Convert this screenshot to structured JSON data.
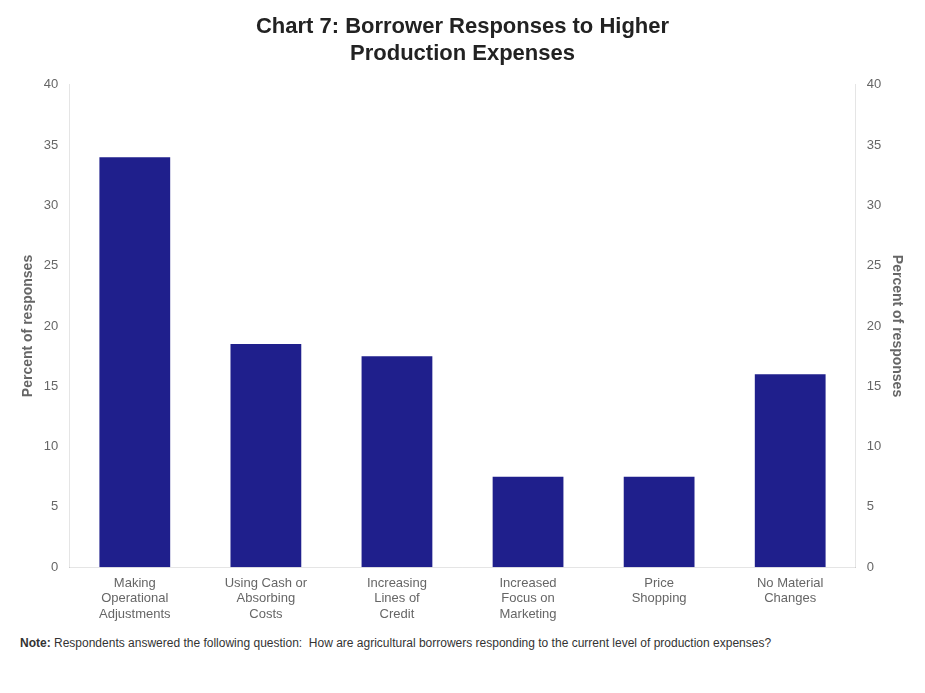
{
  "chart_data": {
    "type": "bar",
    "title": [
      "Chart 7: Borrower Responses to Higher",
      "Production Expenses"
    ],
    "categories": [
      "Making\nOperational\nAdjustments",
      "Using Cash or\nAbsorbing\nCosts",
      "Increasing\nLines of\nCredit",
      "Increased\nFocus on\nMarketing",
      "Price\nShopping",
      "No Material\nChanges"
    ],
    "values": [
      34,
      18.5,
      17.5,
      7.5,
      7.5,
      16
    ],
    "color": "#1F1F8C",
    "ylabel": "Percent of responses",
    "y2label": "Percent of responses",
    "ylim": [
      0,
      40
    ],
    "yticks": [
      0,
      5,
      10,
      15,
      20,
      25,
      30,
      35,
      40
    ],
    "y2lim": [
      0,
      40
    ],
    "y2ticks": [
      0,
      5,
      10,
      15,
      20,
      25,
      30,
      35,
      40
    ],
    "grid": false,
    "note": {
      "label": "Note:",
      "text": "Respondents answered the following question:  How are agricultural borrowers responding to the current level of production expenses?"
    }
  }
}
